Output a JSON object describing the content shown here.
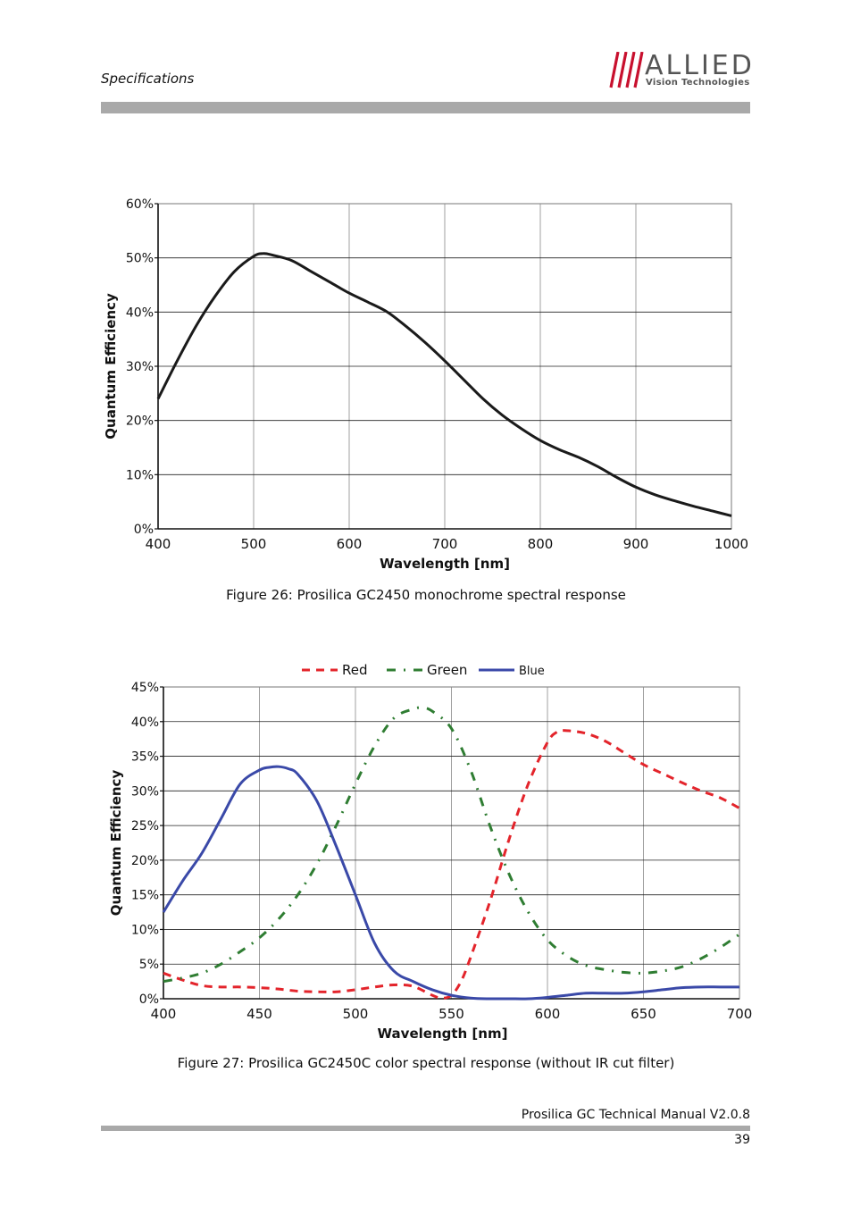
{
  "header": {
    "section_title": "Specifications",
    "logo": {
      "word": "ALLIED",
      "subtitle": "Vision Technologies"
    }
  },
  "figure26": {
    "caption": "Figure 26: Prosilica GC2450 monochrome spectral response"
  },
  "figure27": {
    "caption": "Figure 27: Prosilica GC2450C color spectral response (without IR cut filter)"
  },
  "footer": {
    "manual": "Prosilica GC Technical Manual V2.0.8",
    "page": "39"
  },
  "chart_data": [
    {
      "type": "line",
      "xlabel": "Wavelength [nm]",
      "ylabel": "Quantum Efficiency",
      "xlim": [
        400,
        1000
      ],
      "ylim": [
        0,
        60
      ],
      "xticks": [
        "400",
        "500",
        "600",
        "700",
        "800",
        "900",
        "1000"
      ],
      "yticks": [
        "0%",
        "10%",
        "20%",
        "30%",
        "40%",
        "50%",
        "60%"
      ],
      "grid": true,
      "series": [
        {
          "color": "#1a1a1a",
          "x": [
            400,
            420,
            440,
            460,
            480,
            500,
            510,
            520,
            540,
            560,
            580,
            600,
            620,
            640,
            660,
            680,
            700,
            720,
            740,
            760,
            780,
            800,
            820,
            840,
            860,
            880,
            900,
            920,
            940,
            960,
            980,
            1000
          ],
          "y": [
            24,
            31,
            37.5,
            43,
            47.5,
            50.3,
            50.8,
            50.5,
            49.5,
            47.5,
            45.5,
            43.5,
            41.8,
            40,
            37.3,
            34.3,
            31,
            27.5,
            24,
            21,
            18.5,
            16.3,
            14.6,
            13.2,
            11.5,
            9.5,
            7.7,
            6.3,
            5.2,
            4.2,
            3.3,
            2.4
          ]
        }
      ]
    },
    {
      "type": "line",
      "xlabel": "Wavelength [nm]",
      "ylabel": "Quantum Efficiency",
      "xlim": [
        400,
        700
      ],
      "ylim": [
        0,
        45
      ],
      "xticks": [
        "400",
        "450",
        "500",
        "550",
        "600",
        "650",
        "700"
      ],
      "yticks": [
        "0%",
        "5%",
        "10%",
        "15%",
        "20%",
        "25%",
        "30%",
        "35%",
        "40%",
        "45%"
      ],
      "grid": true,
      "legend": "top",
      "series": [
        {
          "name": "Red",
          "color": "#e3242b",
          "dash": "dashed",
          "x": [
            400,
            410,
            420,
            430,
            440,
            450,
            460,
            470,
            480,
            490,
            500,
            510,
            520,
            530,
            540,
            545,
            550,
            555,
            560,
            570,
            580,
            590,
            600,
            605,
            610,
            620,
            630,
            640,
            650,
            660,
            670,
            680,
            690,
            700
          ],
          "y": [
            3.7,
            2.7,
            1.9,
            1.7,
            1.7,
            1.6,
            1.4,
            1.1,
            1.0,
            1.0,
            1.3,
            1.7,
            2.0,
            1.8,
            0.5,
            0.1,
            0.5,
            2.5,
            6.0,
            14.0,
            23.0,
            31.0,
            37.0,
            38.5,
            38.7,
            38.3,
            37.2,
            35.5,
            33.8,
            32.5,
            31.2,
            30.0,
            29.0,
            27.5
          ]
        },
        {
          "name": "Green",
          "color": "#2f7d32",
          "dash": "dash-dot",
          "x": [
            400,
            410,
            420,
            430,
            440,
            450,
            460,
            470,
            480,
            490,
            500,
            510,
            520,
            530,
            535,
            540,
            550,
            560,
            570,
            580,
            590,
            600,
            610,
            620,
            630,
            640,
            650,
            660,
            670,
            680,
            690,
            700
          ],
          "y": [
            2.5,
            3.0,
            3.7,
            5.0,
            6.8,
            8.8,
            11.5,
            15.0,
            19.5,
            25.0,
            31.0,
            36.5,
            40.5,
            41.8,
            42.0,
            41.5,
            39.0,
            33.0,
            25.0,
            18.0,
            12.5,
            8.5,
            6.2,
            4.8,
            4.2,
            3.8,
            3.7,
            4.0,
            4.6,
            5.8,
            7.4,
            9.3
          ]
        },
        {
          "name": "Blue",
          "color": "#3a49a8",
          "dash": "solid",
          "x": [
            400,
            410,
            420,
            430,
            440,
            450,
            455,
            460,
            465,
            470,
            480,
            490,
            500,
            510,
            520,
            530,
            540,
            550,
            560,
            570,
            580,
            590,
            600,
            610,
            620,
            630,
            640,
            650,
            660,
            670,
            680,
            690,
            700
          ],
          "y": [
            12.5,
            17.0,
            21.0,
            26.0,
            31.0,
            33.0,
            33.4,
            33.5,
            33.2,
            32.4,
            28.5,
            22.0,
            15.0,
            8.0,
            4.0,
            2.5,
            1.3,
            0.5,
            0.1,
            0.0,
            0.0,
            0.0,
            0.2,
            0.5,
            0.8,
            0.8,
            0.8,
            1.0,
            1.3,
            1.6,
            1.7,
            1.7,
            1.7
          ]
        }
      ]
    }
  ]
}
